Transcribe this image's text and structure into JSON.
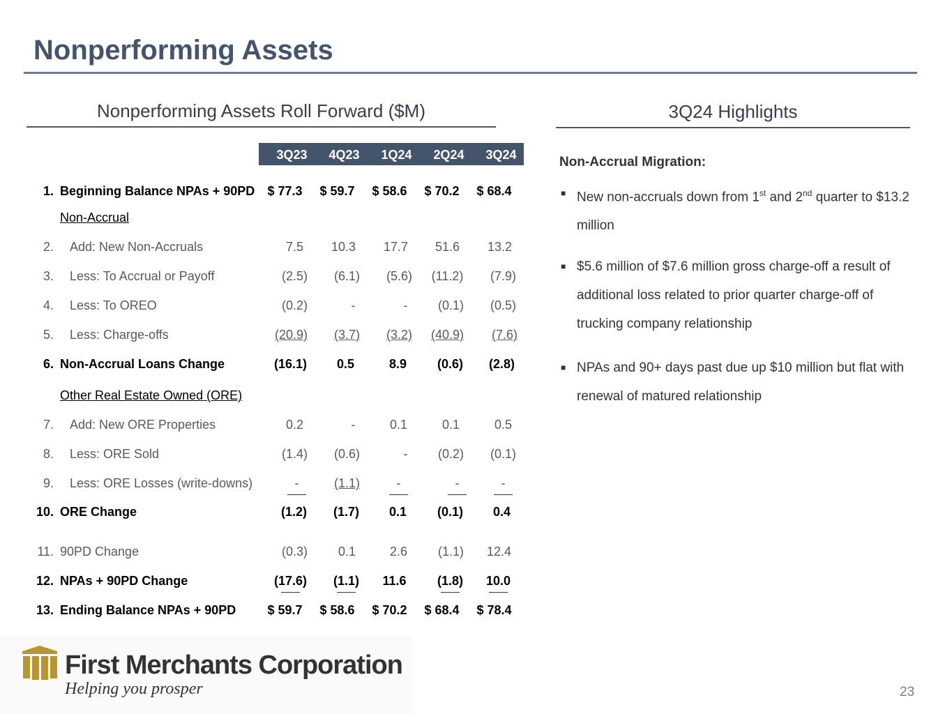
{
  "title": "Nonperforming Assets",
  "left_heading": "Nonperforming Assets Roll Forward ($M)",
  "right_heading": "3Q24 Highlights",
  "columns": [
    "3Q23",
    "4Q23",
    "1Q24",
    "2Q24",
    "3Q24"
  ],
  "rows": [
    {
      "num": "1.",
      "label": "Beginning Balance NPAs + 90PD",
      "values": [
        "$ 77.3",
        "$ 59.7",
        "$ 58.6",
        "$ 70.2",
        "$ 68.4"
      ]
    },
    {
      "heading": "Non-Accrual"
    },
    {
      "num": "2.",
      "label": "Add: New Non-Accruals",
      "values": [
        "7.5",
        "10.3",
        "17.7",
        "51.6",
        "13.2"
      ]
    },
    {
      "num": "3.",
      "label": "Less:  To Accrual or Payoff",
      "values": [
        "(2.5)",
        "(6.1)",
        "(5.6)",
        "(11.2)",
        "(7.9)"
      ]
    },
    {
      "num": "4.",
      "label": "Less:  To OREO",
      "values": [
        "(0.2)",
        "-",
        "-",
        "(0.1)",
        "(0.5)"
      ]
    },
    {
      "num": "5.",
      "label": "Less:  Charge-offs",
      "values": [
        "(20.9)",
        "(3.7)",
        "(3.2)",
        "(40.9)",
        "(7.6)"
      ]
    },
    {
      "num": "6.",
      "label": "Non-Accrual Loans Change",
      "values": [
        "(16.1)",
        "0.5",
        "8.9",
        "(0.6)",
        "(2.8)"
      ]
    },
    {
      "heading": "Other Real Estate Owned (ORE)"
    },
    {
      "num": "7.",
      "label": "Add:  New ORE Properties",
      "values": [
        "0.2",
        "-",
        "0.1",
        "0.1",
        "0.5"
      ]
    },
    {
      "num": "8.",
      "label": "Less: ORE Sold",
      "values": [
        "(1.4)",
        "(0.6)",
        "-",
        "(0.2)",
        "(0.1)"
      ]
    },
    {
      "num": "9.",
      "label": "Less: ORE Losses (write-downs)",
      "values": [
        "-",
        "(1.1)",
        "-",
        "-",
        "-"
      ]
    },
    {
      "num": "10.",
      "label": "ORE Change",
      "values": [
        "(1.2)",
        "(1.7)",
        "0.1",
        "(0.1)",
        "0.4"
      ]
    },
    {
      "num": "11.",
      "label": "90PD Change",
      "values": [
        "(0.3)",
        "0.1",
        "2.6",
        "(1.1)",
        "12.4"
      ]
    },
    {
      "num": "12.",
      "label": "NPAs + 90PD Change",
      "values": [
        "(17.6)",
        "(1.1)",
        "11.6",
        "(1.8)",
        "10.0"
      ]
    },
    {
      "num": "13.",
      "label": "Ending Balance NPAs + 90PD",
      "values": [
        "$ 59.7",
        "$ 58.6",
        "$ 70.2",
        "$ 68.4",
        "$ 78.4"
      ]
    }
  ],
  "highlights": {
    "title": "Non-Accrual Migration:",
    "bullet1": {
      "a": "New non-accruals down from 1",
      "sup1": "st",
      "b": " and 2",
      "sup2": "nd",
      "c": " quarter to $13.2 million"
    },
    "bullet2": "$5.6 million of $7.6 million gross charge-off a result of additional loss related to prior quarter charge-off of trucking company relationship",
    "bullet3": "NPAs and 90+ days past due up $10 million but flat with renewal of matured relationship"
  },
  "logo": {
    "name": "First Merchants Corporation",
    "tagline": "Helping you prosper"
  },
  "page_number": "23",
  "colors": {
    "header_bar": "#44546a",
    "title": "#44546a",
    "logo_gold": "#b8952f"
  }
}
